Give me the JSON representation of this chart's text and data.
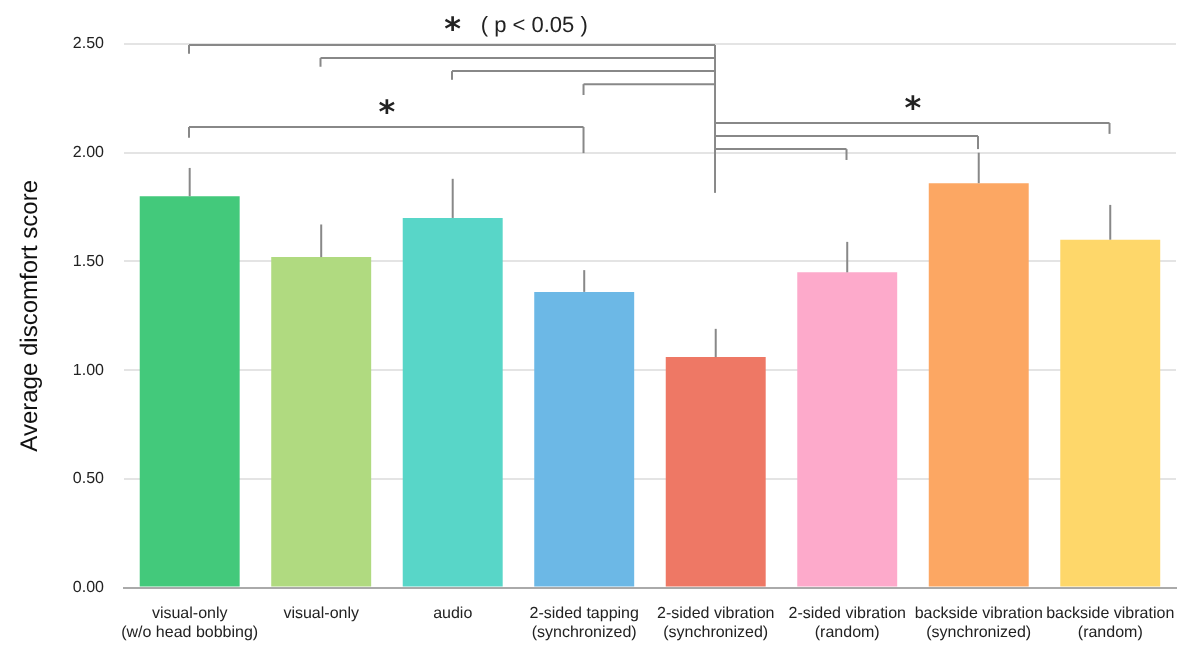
{
  "chart_data": {
    "type": "bar",
    "ylabel": "Average discomfort score",
    "categories": [
      "visual-only\n(w/o head bobbing)",
      "visual-only",
      "audio",
      "2-sided tapping\n(synchronized)",
      "2-sided vibration\n(synchronized)",
      "2-sided vibration\n(random)",
      "backside vibration\n(synchronized)",
      "backside vibration\n(random)"
    ],
    "values": [
      1.8,
      1.52,
      1.7,
      1.36,
      1.06,
      1.45,
      1.86,
      1.6
    ],
    "colors": [
      "#43c97b",
      "#b0da80",
      "#58d6c8",
      "#6cb8e6",
      "#ee7865",
      "#fdaacb",
      "#fca763",
      "#fed76a"
    ],
    "errors": [
      0.13,
      0.15,
      0.18,
      0.1,
      0.13,
      0.14,
      0.14,
      0.16
    ],
    "ylim": [
      0,
      2.5
    ],
    "yticks": [
      {
        "value": 0,
        "label": "0.00"
      },
      {
        "value": 0.5,
        "label": "0.50"
      },
      {
        "value": 1,
        "label": "1.00"
      },
      {
        "value": 1.5,
        "label": "1.50"
      },
      {
        "value": 2,
        "label": "2.00"
      },
      {
        "value": 2.5,
        "label": "2.50"
      }
    ],
    "grid": "y",
    "annotations": [
      "*",
      "( p < 0.05 )",
      "*",
      "*"
    ]
  }
}
